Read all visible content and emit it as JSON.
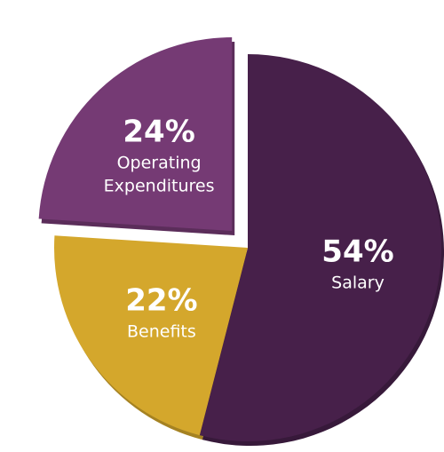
{
  "chart_data": {
    "type": "pie",
    "title": "",
    "slices": [
      {
        "pct_label": "54%",
        "name_lines": [
          "Salary"
        ],
        "value": 54,
        "color": "#47204a",
        "exploded": false
      },
      {
        "pct_label": "22%",
        "name_lines": [
          "Benefits"
        ],
        "value": 22,
        "color": "#d4a72c",
        "exploded": false
      },
      {
        "pct_label": "24%",
        "name_lines": [
          "Operating",
          "Expenditures"
        ],
        "value": 24,
        "color": "#753a74",
        "exploded": true
      }
    ]
  }
}
